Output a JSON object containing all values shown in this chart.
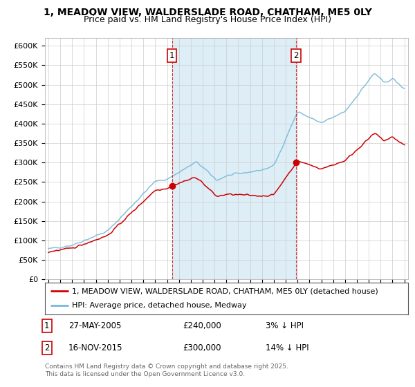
{
  "title_line1": "1, MEADOW VIEW, WALDERSLADE ROAD, CHATHAM, ME5 0LY",
  "title_line2": "Price paid vs. HM Land Registry's House Price Index (HPI)",
  "ylim": [
    0,
    620000
  ],
  "yticks": [
    0,
    50000,
    100000,
    150000,
    200000,
    250000,
    300000,
    350000,
    400000,
    450000,
    500000,
    550000,
    600000
  ],
  "ytick_labels": [
    "£0",
    "£50K",
    "£100K",
    "£150K",
    "£200K",
    "£250K",
    "£300K",
    "£350K",
    "£400K",
    "£450K",
    "£500K",
    "£550K",
    "£600K"
  ],
  "hpi_color": "#7ab8d9",
  "price_color": "#cc0000",
  "shade_color": "#ddeef7",
  "marker1_date": 2005.41,
  "marker1_price": 240000,
  "marker1_label": "1",
  "marker2_date": 2015.88,
  "marker2_price": 300000,
  "marker2_label": "2",
  "legend_label1": "1, MEADOW VIEW, WALDERSLADE ROAD, CHATHAM, ME5 0LY (detached house)",
  "legend_label2": "HPI: Average price, detached house, Medway",
  "table_row1": [
    "1",
    "27-MAY-2005",
    "£240,000",
    "3% ↓ HPI"
  ],
  "table_row2": [
    "2",
    "16-NOV-2015",
    "£300,000",
    "14% ↓ HPI"
  ],
  "footer": "Contains HM Land Registry data © Crown copyright and database right 2025.\nThis data is licensed under the Open Government Licence v3.0.",
  "background_color": "#ffffff",
  "plot_bg_color": "#ffffff",
  "xlim_left": 1994.7,
  "xlim_right": 2025.3
}
